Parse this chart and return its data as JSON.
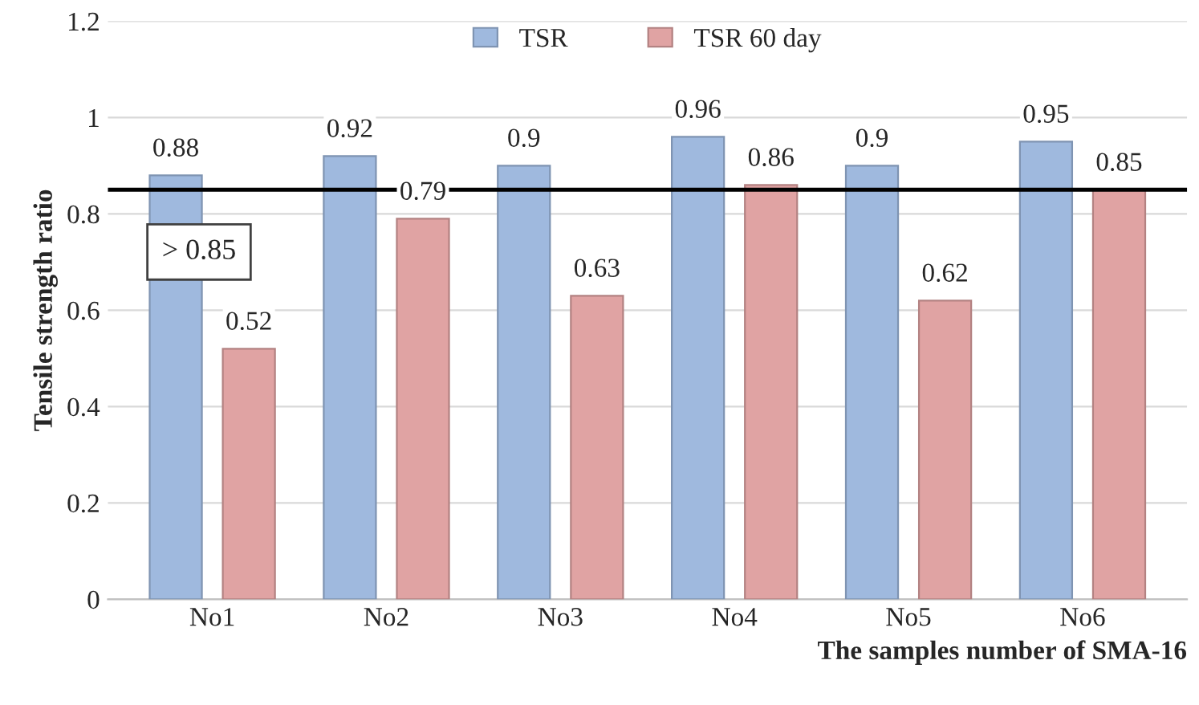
{
  "chart_data": {
    "type": "bar",
    "xlabel": "The samples number of SMA-16",
    "ylabel": "Tensile strength ratio",
    "categories": [
      "No1",
      "No2",
      "No3",
      "No4",
      "No5",
      "No6"
    ],
    "series": [
      {
        "name": "TSR",
        "color": "#9fb9de",
        "values": [
          0.88,
          0.92,
          0.9,
          0.96,
          0.9,
          0.95
        ]
      },
      {
        "name": "TSR 60 day",
        "color": "#e0a3a3",
        "values": [
          0.52,
          0.79,
          0.63,
          0.86,
          0.62,
          0.85
        ]
      }
    ],
    "ylim": [
      0,
      1.2
    ],
    "yticks": [
      0,
      0.2,
      0.4,
      0.6,
      0.8,
      1,
      1.2
    ],
    "ref_lines": [
      {
        "axis": "y",
        "value": 0.85,
        "label": "> 0.85",
        "color": "#000000"
      }
    ],
    "data_labels": true,
    "grid": "y",
    "legend": "top"
  }
}
